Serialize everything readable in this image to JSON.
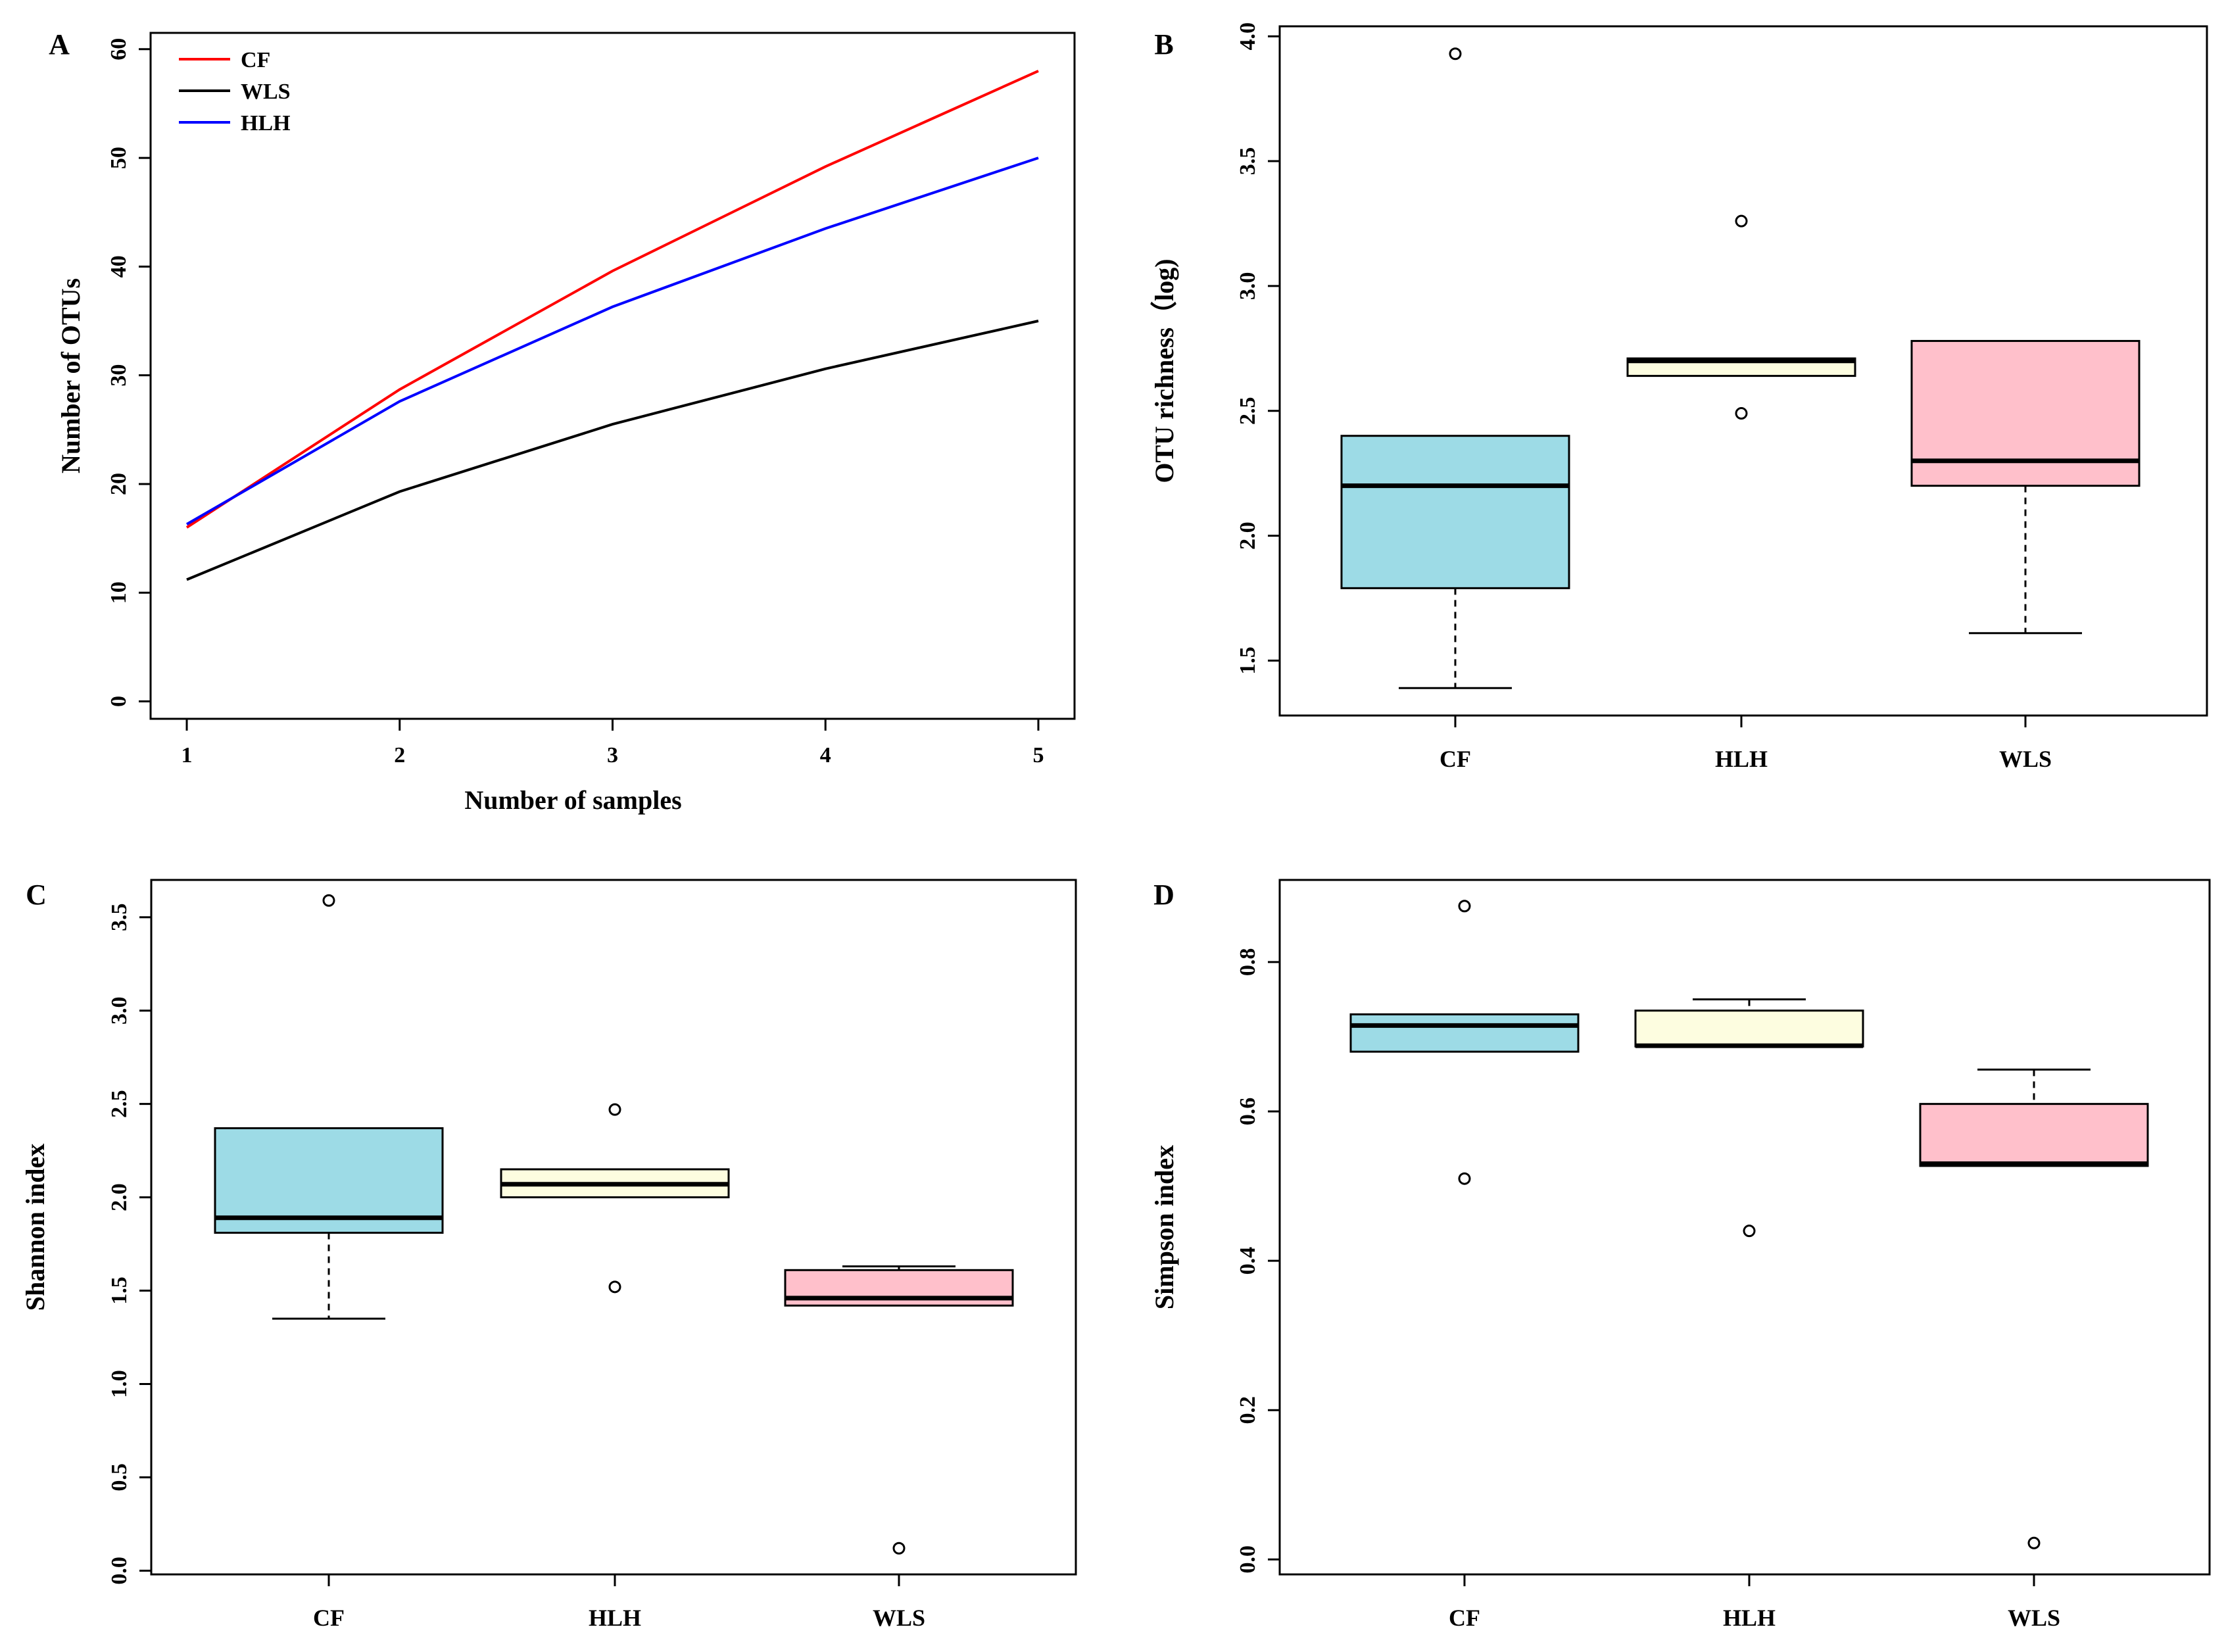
{
  "chart_data": [
    {
      "panel": "A",
      "type": "line",
      "title": "",
      "xlabel": "Number of samples",
      "ylabel": "Number of OTUs",
      "x": [
        1,
        2,
        3,
        4,
        5
      ],
      "xticks": [
        "1",
        "2",
        "3",
        "4",
        "5"
      ],
      "xlim": [
        0.83,
        5.17
      ],
      "ylim": [
        -1.6,
        61.5
      ],
      "yticks": [
        "0",
        "10",
        "20",
        "30",
        "40",
        "50",
        "60"
      ],
      "ytick_values": [
        0,
        10,
        20,
        30,
        40,
        50,
        60
      ],
      "legend_position": "top-left",
      "series": [
        {
          "name": "CF",
          "color": "#ff0000",
          "values": [
            16.0,
            28.7,
            39.6,
            49.2,
            58.0
          ]
        },
        {
          "name": "WLS",
          "color": "#000000",
          "values": [
            11.2,
            19.3,
            25.5,
            30.6,
            35.0
          ]
        },
        {
          "name": "HLH",
          "color": "#0000ff",
          "values": [
            16.3,
            27.6,
            36.3,
            43.5,
            50.0
          ]
        }
      ]
    },
    {
      "panel": "B",
      "type": "boxplot",
      "xlabel": "",
      "ylabel": "OTU richness（log)",
      "ylim": [
        1.28,
        4.04
      ],
      "yticks": [
        "1.5",
        "2.0",
        "2.5",
        "3.0",
        "3.5",
        "4.0"
      ],
      "ytick_values": [
        1.5,
        2.0,
        2.5,
        3.0,
        3.5,
        4.0
      ],
      "categories": [
        "CF",
        "HLH",
        "WLS"
      ],
      "boxes": [
        {
          "name": "CF",
          "color": "#9ddbe6",
          "whisker_low": 1.39,
          "q1": 1.79,
          "median": 2.2,
          "q3": 2.4,
          "whisker_high": 2.4,
          "outliers": [
            3.93
          ]
        },
        {
          "name": "HLH",
          "color": "#fdfde0",
          "whisker_low": 2.64,
          "q1": 2.64,
          "median": 2.7,
          "q3": 2.71,
          "whisker_high": 2.71,
          "outliers": [
            3.26,
            2.49
          ]
        },
        {
          "name": "WLS",
          "color": "#ffc0cb",
          "whisker_low": 1.61,
          "q1": 2.2,
          "median": 2.3,
          "q3": 2.78,
          "whisker_high": 2.78,
          "outliers": []
        }
      ]
    },
    {
      "panel": "C",
      "type": "boxplot",
      "xlabel": "",
      "ylabel": "Shannon index",
      "ylim": [
        -0.02,
        3.7
      ],
      "yticks": [
        "0.0",
        "0.5",
        "1.0",
        "1.5",
        "2.0",
        "2.5",
        "3.0",
        "3.5"
      ],
      "ytick_values": [
        0.0,
        0.5,
        1.0,
        1.5,
        2.0,
        2.5,
        3.0,
        3.5
      ],
      "categories": [
        "CF",
        "HLH",
        "WLS"
      ],
      "boxes": [
        {
          "name": "CF",
          "color": "#9ddbe6",
          "whisker_low": 1.35,
          "q1": 1.81,
          "median": 1.89,
          "q3": 2.37,
          "whisker_high": 2.37,
          "outliers": [
            3.59
          ]
        },
        {
          "name": "HLH",
          "color": "#fdfde0",
          "whisker_low": 2.0,
          "q1": 2.0,
          "median": 2.07,
          "q3": 2.15,
          "whisker_high": 2.15,
          "outliers": [
            2.47,
            1.52
          ]
        },
        {
          "name": "WLS",
          "color": "#ffc0cb",
          "whisker_low": 1.42,
          "q1": 1.42,
          "median": 1.46,
          "q3": 1.61,
          "whisker_high": 1.63,
          "outliers": [
            0.12
          ]
        }
      ]
    },
    {
      "panel": "D",
      "type": "boxplot",
      "xlabel": "",
      "ylabel": "Simpson index",
      "ylim": [
        -0.02,
        0.91
      ],
      "yticks": [
        "0.0",
        "0.2",
        "0.4",
        "0.6",
        "0.8"
      ],
      "ytick_values": [
        0.0,
        0.2,
        0.4,
        0.6,
        0.8
      ],
      "categories": [
        "CF",
        "HLH",
        "WLS"
      ],
      "boxes": [
        {
          "name": "CF",
          "color": "#9ddbe6",
          "whisker_low": 0.68,
          "q1": 0.68,
          "median": 0.715,
          "q3": 0.73,
          "whisker_high": 0.73,
          "outliers": [
            0.875,
            0.51
          ]
        },
        {
          "name": "HLH",
          "color": "#fdfde0",
          "whisker_low": 0.687,
          "q1": 0.687,
          "median": 0.688,
          "q3": 0.735,
          "whisker_high": 0.75,
          "outliers": [
            0.44
          ]
        },
        {
          "name": "WLS",
          "color": "#ffc0cb",
          "whisker_low": 0.527,
          "q1": 0.527,
          "median": 0.53,
          "q3": 0.61,
          "whisker_high": 0.656,
          "outliers": [
            0.022
          ]
        }
      ]
    }
  ]
}
